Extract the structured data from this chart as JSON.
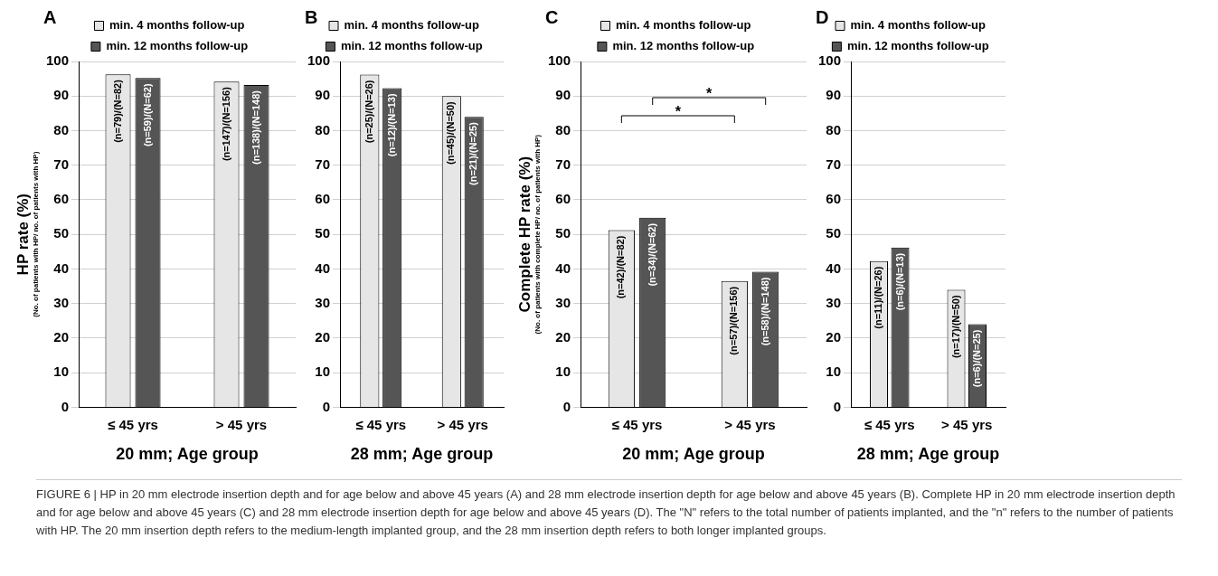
{
  "chart_data": [
    {
      "type": "bar",
      "title": "A",
      "xlabel": "20 mm; Age group",
      "ylabel": "HP rate (%)\n(No. of patients with HP/ no. of patients with HP)",
      "categories": [
        "≤ 45 yrs",
        "> 45 yrs"
      ],
      "series": [
        {
          "name": "min. 4 months follow-up",
          "color": "#e6e6e6",
          "values": [
            96.3,
            94.2
          ],
          "value_labels": [
            "(n=79)/(N=82)",
            "(n=147)/(N=156)"
          ]
        },
        {
          "name": "min. 12 months follow-up",
          "color": "#555555",
          "values": [
            95.2,
            93.2
          ],
          "value_labels": [
            "(n=59)/(N=62)",
            "(n=138)/(N=148)"
          ]
        }
      ],
      "ylim": [
        0,
        100
      ],
      "yticks": [
        0,
        10,
        20,
        30,
        40,
        50,
        60,
        70,
        80,
        90,
        100
      ],
      "grid": "y",
      "legend": "top"
    },
    {
      "type": "bar",
      "title": "B",
      "xlabel": "28 mm; Age group",
      "categories": [
        "≤ 45 yrs",
        "> 45 yrs"
      ],
      "series": [
        {
          "name": "min. 4 months follow-up",
          "color": "#e6e6e6",
          "values": [
            96.2,
            90
          ],
          "value_labels": [
            "(n=25)/(N=26)",
            "(n=45)/(N=50)"
          ]
        },
        {
          "name": "min. 12 months follow-up",
          "color": "#555555",
          "values": [
            92.3,
            84
          ],
          "value_labels": [
            "(n=12)/(N=13)",
            "(n=21)/(N=25)"
          ]
        }
      ],
      "ylim": [
        0,
        100
      ],
      "yticks": [
        0,
        10,
        20,
        30,
        40,
        50,
        60,
        70,
        80,
        90,
        100
      ],
      "grid": "y",
      "legend": "top"
    },
    {
      "type": "bar",
      "title": "C",
      "xlabel": "20 mm; Age group",
      "ylabel": "Complete HP rate (%)\n(No. of patients with complete HP/ no. of patients with HP)",
      "categories": [
        "≤ 45 yrs",
        "> 45 yrs"
      ],
      "series": [
        {
          "name": "min. 4 months follow-up",
          "color": "#e6e6e6",
          "values": [
            51.2,
            36.5
          ],
          "value_labels": [
            "(n=42)/(N=82)",
            "(n=57)/(N=156)"
          ]
        },
        {
          "name": "min. 12 months follow-up",
          "color": "#555555",
          "values": [
            54.8,
            39.2
          ],
          "value_labels": [
            "(n=34)/(N=62)",
            "(n=58)/(N=148)"
          ]
        }
      ],
      "ylim": [
        0,
        100
      ],
      "yticks": [
        0,
        10,
        20,
        30,
        40,
        50,
        60,
        70,
        80,
        90,
        100
      ],
      "grid": "y",
      "legend": "top",
      "annotations": [
        "*",
        "*"
      ]
    },
    {
      "type": "bar",
      "title": "D",
      "xlabel": "28 mm; Age group",
      "categories": [
        "≤ 45 yrs",
        "> 45 yrs"
      ],
      "series": [
        {
          "name": "min. 4 months follow-up",
          "color": "#e6e6e6",
          "values": [
            42.3,
            34
          ],
          "value_labels": [
            "(n=11)/(N=26)",
            "(n=17)/(N=50)"
          ]
        },
        {
          "name": "min. 12 months follow-up",
          "color": "#555555",
          "values": [
            46.2,
            24
          ],
          "value_labels": [
            "(n=6)/(N=13)",
            "(n=6)/(N=25)"
          ]
        }
      ],
      "ylim": [
        0,
        100
      ],
      "yticks": [
        0,
        10,
        20,
        30,
        40,
        50,
        60,
        70,
        80,
        90,
        100
      ],
      "grid": "y",
      "legend": "top"
    },
    {
      "type": "other",
      "annotations": [
        "FIGURE 6 | HP in 20 mm electrode insertion depth and for age below and above 45 years (A) and 28 mm electrode insertion depth for age below and above 45 years (B). Complete HP in 20 mm electrode insertion depth and for age below and above 45 years (C) and 28 mm electrode insertion depth for age below and above 45 years (D). The \"N\" refers to the total number of patients implanted, and the \"n\" refers to the number of patients with HP. The 20 mm insertion depth refers to the medium-length implanted group, and the 28 mm insertion depth refers to both longer implanted groups."
      ]
    }
  ]
}
